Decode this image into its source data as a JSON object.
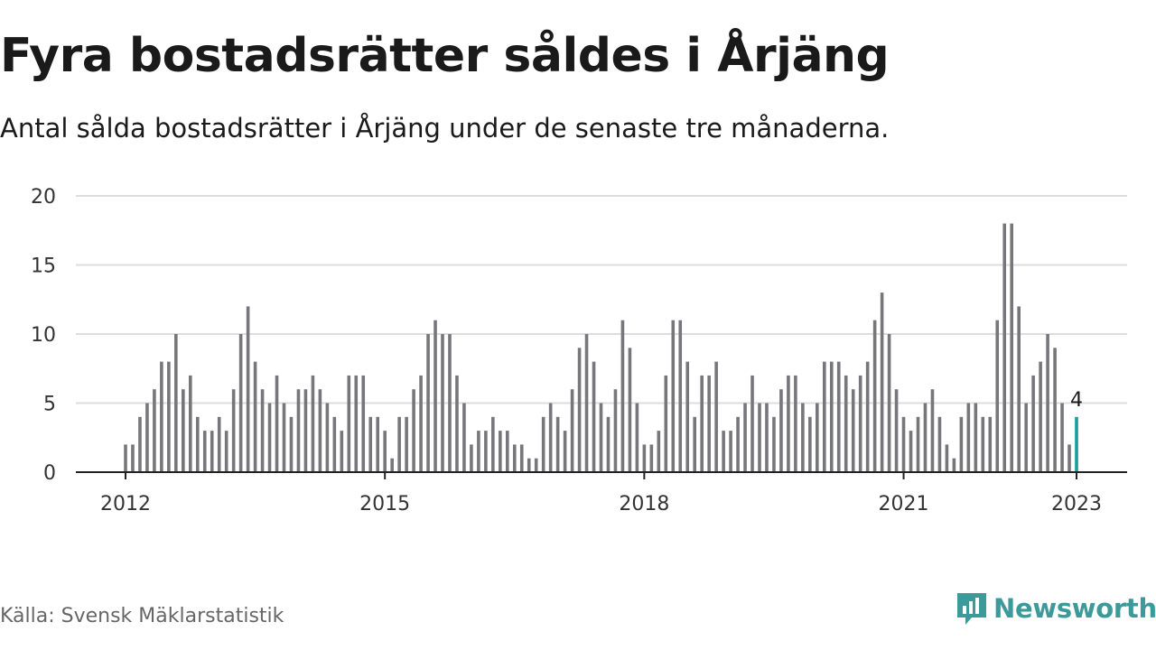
{
  "header": {
    "title": "Fyra bostadsrätter såldes i Årjäng",
    "subtitle": "Antal sålda bostadsrätter i Årjäng under de senaste tre månaderna."
  },
  "footer": {
    "source": "Källa: Svensk Mäklarstatistik",
    "brand": "Newsworthy"
  },
  "colors": {
    "bar": "#77777b",
    "highlight": "#1a9d9d",
    "grid": "#dddddd",
    "axis": "#222222",
    "brand": "#3c9a9a"
  },
  "chart_data": {
    "type": "bar",
    "title": "Fyra bostadsrätter såldes i Årjäng",
    "subtitle": "Antal sålda bostadsrätter i Årjäng under de senaste tre månaderna.",
    "x_start": "2012-01",
    "x_interval": "month",
    "values": [
      2,
      2,
      4,
      5,
      6,
      8,
      8,
      10,
      6,
      7,
      4,
      3,
      3,
      4,
      3,
      6,
      10,
      12,
      8,
      6,
      5,
      7,
      5,
      4,
      6,
      6,
      7,
      6,
      5,
      4,
      3,
      7,
      7,
      7,
      4,
      4,
      3,
      1,
      4,
      4,
      6,
      7,
      10,
      11,
      10,
      10,
      7,
      5,
      2,
      3,
      3,
      4,
      3,
      3,
      2,
      2,
      1,
      1,
      4,
      5,
      4,
      3,
      6,
      9,
      10,
      8,
      5,
      4,
      6,
      11,
      9,
      5,
      2,
      2,
      3,
      7,
      11,
      11,
      8,
      4,
      7,
      7,
      8,
      3,
      3,
      4,
      5,
      7,
      5,
      5,
      4,
      6,
      7,
      7,
      5,
      4,
      5,
      8,
      8,
      8,
      7,
      6,
      7,
      8,
      11,
      13,
      10,
      6,
      4,
      3,
      4,
      5,
      6,
      4,
      2,
      1,
      4,
      5,
      5,
      4,
      4,
      11,
      18,
      18,
      12,
      5,
      7,
      8,
      10,
      9,
      5,
      2,
      4
    ],
    "highlight_last": true,
    "last_value_label": "4",
    "x_ticks": [
      "2012",
      "2015",
      "2018",
      "2021",
      "2023"
    ],
    "y_ticks": [
      0,
      5,
      10,
      15,
      20
    ],
    "ylim": [
      0,
      20
    ],
    "grid": true,
    "xlabel": "",
    "ylabel": ""
  }
}
